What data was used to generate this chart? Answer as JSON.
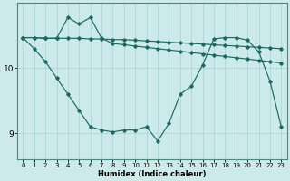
{
  "xlabel": "Humidex (Indice chaleur)",
  "xlim": [
    -0.5,
    23.5
  ],
  "ylim": [
    8.6,
    11.0
  ],
  "yticks": [
    9,
    10
  ],
  "xticks": [
    0,
    1,
    2,
    3,
    4,
    5,
    6,
    7,
    8,
    9,
    10,
    11,
    12,
    13,
    14,
    15,
    16,
    17,
    18,
    19,
    20,
    21,
    22,
    23
  ],
  "bg_color": "#cceaea",
  "line_color": "#1a6b5e",
  "grid_color_major": "#aacfcf",
  "grid_color_minor": "#c0dfdf",
  "line1_x": [
    0,
    1,
    2,
    3,
    4,
    5,
    6,
    7,
    8,
    9,
    10,
    11,
    12,
    13,
    14,
    15,
    16,
    17,
    18,
    19,
    20,
    21,
    22,
    23
  ],
  "line1_y": [
    10.47,
    10.47,
    10.46,
    10.46,
    10.46,
    10.46,
    10.45,
    10.45,
    10.44,
    10.44,
    10.43,
    10.42,
    10.41,
    10.4,
    10.39,
    10.38,
    10.37,
    10.36,
    10.35,
    10.34,
    10.33,
    10.32,
    10.31,
    10.3
  ],
  "line2_x": [
    0,
    1,
    2,
    3,
    4,
    5,
    6,
    7,
    8,
    9,
    10,
    11,
    12,
    13,
    14,
    15,
    16,
    17,
    18,
    19,
    20,
    21,
    22,
    23
  ],
  "line2_y": [
    10.47,
    10.47,
    10.46,
    10.46,
    10.78,
    10.68,
    10.78,
    10.46,
    10.38,
    10.36,
    10.34,
    10.32,
    10.3,
    10.28,
    10.26,
    10.24,
    10.22,
    10.2,
    10.18,
    10.16,
    10.14,
    10.12,
    10.1,
    10.08
  ],
  "line3_x": [
    0,
    1,
    2,
    3,
    4,
    5,
    6,
    7,
    8,
    9,
    10,
    11,
    12,
    13,
    14,
    15,
    16,
    17,
    18,
    19,
    20,
    21,
    22,
    23
  ],
  "line3_y": [
    10.47,
    10.3,
    10.1,
    9.85,
    9.6,
    9.35,
    9.1,
    9.05,
    9.02,
    9.05,
    9.05,
    9.1,
    8.88,
    9.15,
    9.6,
    9.72,
    10.05,
    10.45,
    10.47,
    10.47,
    10.43,
    10.25,
    9.8,
    9.1
  ]
}
